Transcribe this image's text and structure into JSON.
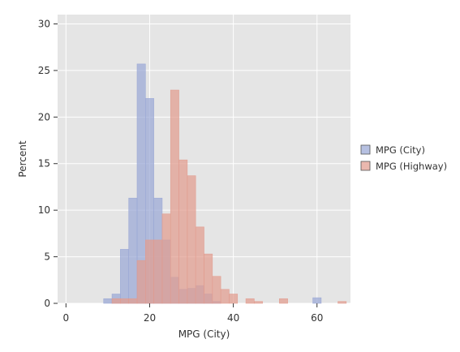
{
  "chart_data": {
    "type": "histogram",
    "title": "",
    "xlabel": "MPG (City)",
    "ylabel": "Percent",
    "xlim": [
      -2,
      68
    ],
    "ylim": [
      0,
      31
    ],
    "xticks": [
      0,
      20,
      40,
      60
    ],
    "yticks": [
      0,
      5,
      10,
      15,
      20,
      25,
      30
    ],
    "grid": true,
    "legend_position": "right",
    "bin_width": 2,
    "series": [
      {
        "name": "MPG (City)",
        "color": "#9aa7d6",
        "bins": [
          {
            "x0": 9,
            "x1": 11,
            "value": 0.5
          },
          {
            "x0": 11,
            "x1": 13,
            "value": 1.0
          },
          {
            "x0": 13,
            "x1": 15,
            "value": 5.8
          },
          {
            "x0": 15,
            "x1": 17,
            "value": 11.3
          },
          {
            "x0": 17,
            "x1": 19,
            "value": 25.7
          },
          {
            "x0": 19,
            "x1": 21,
            "value": 22.0
          },
          {
            "x0": 21,
            "x1": 23,
            "value": 11.3
          },
          {
            "x0": 23,
            "x1": 25,
            "value": 6.8
          },
          {
            "x0": 25,
            "x1": 27,
            "value": 2.8
          },
          {
            "x0": 27,
            "x1": 29,
            "value": 1.5
          },
          {
            "x0": 29,
            "x1": 31,
            "value": 1.6
          },
          {
            "x0": 31,
            "x1": 33,
            "value": 1.9
          },
          {
            "x0": 33,
            "x1": 35,
            "value": 1.0
          },
          {
            "x0": 35,
            "x1": 37,
            "value": 0.2
          },
          {
            "x0": 59,
            "x1": 61,
            "value": 0.6
          }
        ]
      },
      {
        "name": "MPG (Highway)",
        "color": "#e29c8f",
        "bins": [
          {
            "x0": 11,
            "x1": 13,
            "value": 0.5
          },
          {
            "x0": 13,
            "x1": 15,
            "value": 0.5
          },
          {
            "x0": 15,
            "x1": 17,
            "value": 0.5
          },
          {
            "x0": 17,
            "x1": 19,
            "value": 4.6
          },
          {
            "x0": 19,
            "x1": 21,
            "value": 6.8
          },
          {
            "x0": 21,
            "x1": 23,
            "value": 6.8
          },
          {
            "x0": 23,
            "x1": 25,
            "value": 9.6
          },
          {
            "x0": 25,
            "x1": 27,
            "value": 22.9
          },
          {
            "x0": 27,
            "x1": 29,
            "value": 15.4
          },
          {
            "x0": 29,
            "x1": 31,
            "value": 13.7
          },
          {
            "x0": 31,
            "x1": 33,
            "value": 8.2
          },
          {
            "x0": 33,
            "x1": 35,
            "value": 5.3
          },
          {
            "x0": 35,
            "x1": 37,
            "value": 2.9
          },
          {
            "x0": 37,
            "x1": 39,
            "value": 1.5
          },
          {
            "x0": 39,
            "x1": 41,
            "value": 1.0
          },
          {
            "x0": 43,
            "x1": 45,
            "value": 0.5
          },
          {
            "x0": 45,
            "x1": 47,
            "value": 0.2
          },
          {
            "x0": 51,
            "x1": 53,
            "value": 0.5
          },
          {
            "x0": 65,
            "x1": 67,
            "value": 0.2
          }
        ]
      }
    ]
  }
}
